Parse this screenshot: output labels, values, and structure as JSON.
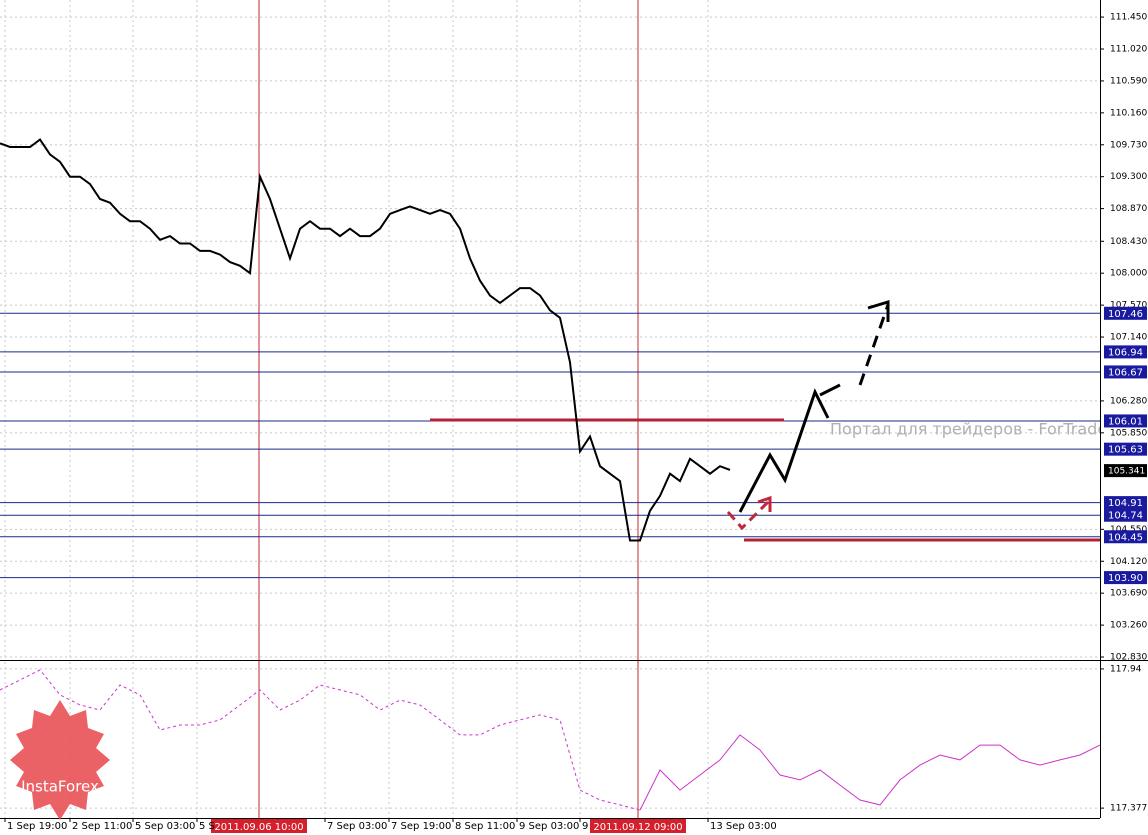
{
  "chart_data": [
    {
      "type": "line",
      "color": "#000000",
      "grid": true,
      "x": [
        0,
        1,
        2,
        3,
        4,
        5,
        6,
        7,
        8,
        9,
        10,
        11,
        12,
        13,
        14,
        15,
        16,
        17,
        18,
        19,
        20,
        21,
        22,
        23,
        24,
        25,
        26,
        27,
        28,
        29,
        30,
        31,
        32,
        33,
        34,
        35,
        36,
        37,
        38,
        39,
        40,
        41,
        42,
        43,
        44,
        45,
        46,
        47,
        48,
        49,
        50,
        51,
        52,
        53,
        54,
        55,
        56,
        57,
        58,
        59,
        60,
        61,
        62,
        63,
        64,
        65,
        66,
        67,
        68,
        69,
        70,
        71,
        72,
        73
      ],
      "values": [
        109.75,
        109.7,
        109.7,
        109.7,
        109.8,
        109.6,
        109.5,
        109.3,
        109.3,
        109.2,
        109.0,
        108.95,
        108.8,
        108.7,
        108.7,
        108.6,
        108.45,
        108.5,
        108.4,
        108.4,
        108.3,
        108.3,
        108.25,
        108.15,
        108.1,
        108.0,
        109.3,
        109.0,
        108.6,
        108.2,
        108.6,
        108.7,
        108.6,
        108.6,
        108.5,
        108.6,
        108.5,
        108.5,
        108.6,
        108.8,
        108.85,
        108.9,
        108.85,
        108.8,
        108.85,
        108.8,
        108.6,
        108.2,
        107.9,
        107.7,
        107.6,
        107.7,
        107.8,
        107.8,
        107.7,
        107.5,
        107.4,
        106.8,
        105.6,
        105.8,
        105.4,
        105.3,
        105.2,
        104.4,
        104.4,
        104.8,
        105.0,
        105.3,
        105.2,
        105.5,
        105.4,
        105.3,
        105.4,
        105.35
      ],
      "xlim": [
        0,
        110
      ],
      "ylim": [
        102.79,
        111.68
      ],
      "yticks": [
        {
          "value": 111.45,
          "label": "111.450"
        },
        {
          "value": 111.02,
          "label": "111.020"
        },
        {
          "value": 110.59,
          "label": "110.590"
        },
        {
          "value": 110.16,
          "label": "110.160"
        },
        {
          "value": 109.73,
          "label": "109.730"
        },
        {
          "value": 109.3,
          "label": "109.300"
        },
        {
          "value": 108.87,
          "label": "108.870"
        },
        {
          "value": 108.43,
          "label": "108.430"
        },
        {
          "value": 108,
          "label": "108.000"
        },
        {
          "value": 107.57,
          "label": "107.570"
        },
        {
          "value": 107.14,
          "label": "107.140"
        },
        {
          "value": 106.28,
          "label": "106.280"
        },
        {
          "value": 105.85,
          "label": "105.850"
        },
        {
          "value": 104.55,
          "label": "104.550"
        },
        {
          "value": 104.12,
          "label": "104.120"
        },
        {
          "value": 103.69,
          "label": "103.690"
        },
        {
          "value": 103.26,
          "label": "103.260"
        },
        {
          "value": 102.83,
          "label": "102.830"
        }
      ],
      "levels": [
        107.46,
        106.94,
        106.67,
        106.01,
        105.63,
        104.91,
        104.74,
        104.45,
        {
          "value": 103.9,
          "label": "103.90"
        }
      ],
      "current_price": 105.341,
      "vlines": [
        {
          "value": 25.9,
          "label": "2011.09.06 10:00"
        },
        {
          "value": 63.8,
          "label": "2011.09.12 09:00"
        }
      ]
    },
    {
      "type": "line",
      "color": "#cc33cc",
      "grid": true,
      "x": [
        0,
        2,
        4,
        6,
        8,
        10,
        12,
        14,
        16,
        18,
        20,
        22,
        24,
        26,
        28,
        30,
        32,
        34,
        36,
        38,
        40,
        42,
        44,
        46,
        48,
        50,
        52,
        54,
        56,
        58,
        60,
        62,
        64,
        66,
        68,
        70,
        72,
        74,
        76,
        78,
        80,
        82,
        84,
        86,
        88,
        90,
        92,
        94,
        96,
        98,
        100,
        102,
        104,
        106,
        108,
        110
      ],
      "values": [
        117.855,
        117.895,
        117.936,
        117.835,
        117.794,
        117.774,
        117.875,
        117.835,
        117.693,
        117.713,
        117.713,
        117.734,
        117.794,
        117.855,
        117.774,
        117.814,
        117.875,
        117.855,
        117.835,
        117.774,
        117.814,
        117.794,
        117.734,
        117.673,
        117.673,
        117.713,
        117.734,
        117.754,
        117.734,
        117.45,
        117.41,
        117.39,
        117.369,
        117.531,
        117.45,
        117.511,
        117.572,
        117.673,
        117.612,
        117.511,
        117.491,
        117.531,
        117.47,
        117.41,
        117.39,
        117.491,
        117.551,
        117.592,
        117.572,
        117.632,
        117.632,
        117.572,
        117.551,
        117.572,
        117.592,
        117.632
      ],
      "xlim": [
        0,
        110
      ],
      "ylim": [
        117.337,
        117.968
      ],
      "yticks": [
        117.94,
        117.377
      ],
      "xticks": [
        {
          "value": 0.5,
          "label": "1 Sep 19:00"
        },
        {
          "value": 7,
          "label": "2 Sep 11:00"
        },
        {
          "value": 13.3,
          "label": "5 Sep 03:00"
        },
        {
          "value": 19.7,
          "label": "5 S"
        },
        {
          "value": 32.5,
          "label": "7 Sep 03:00"
        },
        {
          "value": 38.9,
          "label": "7 Sep 19:00"
        },
        {
          "value": 45.3,
          "label": "8 Sep 11:00"
        },
        {
          "value": 51.7,
          "label": "9 Sep 03:00"
        },
        {
          "value": 58,
          "label": "9"
        },
        {
          "value": 70.8,
          "label": "13 Sep 03:00"
        }
      ]
    }
  ],
  "watermark": "Портал для трейдеров - ForTrade",
  "logo": "InstaForex"
}
